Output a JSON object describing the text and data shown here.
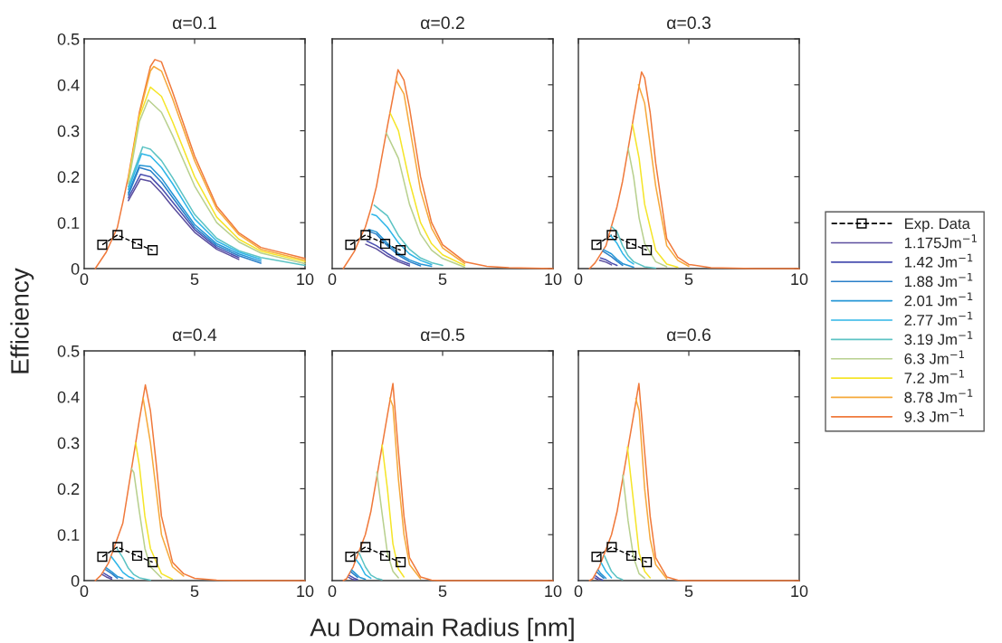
{
  "chart_data": [
    {
      "type": "line",
      "title": "α=0.1",
      "ylabel": "Efficiency",
      "xlim": [
        0,
        10
      ],
      "xticks": [
        0,
        5,
        10
      ],
      "ylim": [
        0,
        0.5
      ],
      "yticks": [
        0,
        0.1,
        0.2,
        0.3,
        0.4,
        0.5
      ],
      "grid": false,
      "legend": "right",
      "series": [
        {
          "name": "Exp. Data",
          "color": "#000000",
          "marker": "square",
          "line_style": "dashed",
          "x": [
            0.82,
            1.51,
            2.4,
            3.1
          ],
          "values": [
            0.052,
            0.073,
            0.054,
            0.04
          ]
        },
        {
          "name": "1.175Jm$^{−1}$",
          "color": "#5b4e9e",
          "x": [
            2,
            2.55,
            3,
            3.5,
            4,
            5,
            6,
            7
          ],
          "values": [
            0.148,
            0.195,
            0.19,
            0.165,
            0.135,
            0.079,
            0.042,
            0.02
          ]
        },
        {
          "name": "1.42 Jm$^{−1}$",
          "color": "#4a4fb0",
          "x": [
            2,
            2.55,
            3,
            3.5,
            4,
            5,
            6,
            7
          ],
          "values": [
            0.154,
            0.205,
            0.2,
            0.175,
            0.145,
            0.085,
            0.046,
            0.024
          ]
        },
        {
          "name": "1.88 Jm$^{−1}$",
          "color": "#2a7fc8",
          "x": [
            2,
            2.5,
            3,
            3.5,
            4,
            5,
            6,
            7,
            8
          ],
          "values": [
            0.16,
            0.22,
            0.213,
            0.188,
            0.155,
            0.09,
            0.05,
            0.028,
            0.012
          ]
        },
        {
          "name": "2.01 Jm$^{−1}$",
          "color": "#2596d6",
          "x": [
            2,
            2.5,
            3,
            3.5,
            4,
            5,
            6,
            7,
            8
          ],
          "values": [
            0.165,
            0.225,
            0.222,
            0.197,
            0.163,
            0.096,
            0.054,
            0.032,
            0.016
          ]
        },
        {
          "name": "2.77 Jm$^{−1}$",
          "color": "#2fb6e8",
          "x": [
            2,
            2.6,
            3,
            3.5,
            4,
            5,
            6,
            7,
            8
          ],
          "values": [
            0.172,
            0.25,
            0.245,
            0.22,
            0.185,
            0.108,
            0.06,
            0.036,
            0.02
          ]
        },
        {
          "name": "3.19 Jm$^{−1}$",
          "color": "#5cc3c4",
          "x": [
            2,
            2.65,
            3,
            3.5,
            4,
            5,
            6,
            7,
            8,
            10
          ],
          "values": [
            0.178,
            0.265,
            0.26,
            0.235,
            0.198,
            0.118,
            0.066,
            0.039,
            0.024,
            0.007
          ]
        },
        {
          "name": "6.3 Jm$^{−1}$",
          "color": "#b8d08e",
          "x": [
            2,
            2.5,
            2.9,
            3.5,
            4,
            5,
            6,
            7,
            8,
            10
          ],
          "values": [
            0.185,
            0.32,
            0.367,
            0.34,
            0.29,
            0.18,
            0.1,
            0.058,
            0.034,
            0.011
          ]
        },
        {
          "name": "7.2 Jm$^{−1}$",
          "color": "#f5e52a",
          "x": [
            2,
            2.5,
            3,
            3.5,
            4,
            5,
            6,
            7,
            8,
            10
          ],
          "values": [
            0.19,
            0.33,
            0.395,
            0.375,
            0.32,
            0.2,
            0.112,
            0.064,
            0.038,
            0.015
          ]
        },
        {
          "name": "8.78 Jm$^{−1}$",
          "color": "#f6a93b",
          "x": [
            2,
            2.5,
            3,
            3.15,
            3.5,
            4,
            5,
            6,
            7,
            8,
            10
          ],
          "values": [
            0.195,
            0.335,
            0.43,
            0.44,
            0.43,
            0.37,
            0.235,
            0.13,
            0.074,
            0.042,
            0.018
          ]
        },
        {
          "name": "9.3 Jm$^{−1}$",
          "color": "#f07a3c",
          "x": [
            0.5,
            1,
            1.5,
            2,
            2.5,
            3,
            3.2,
            3.5,
            4,
            5,
            6,
            7,
            8,
            10
          ],
          "values": [
            0,
            0.036,
            0.089,
            0.2,
            0.34,
            0.44,
            0.455,
            0.45,
            0.385,
            0.245,
            0.136,
            0.078,
            0.046,
            0.022
          ]
        }
      ]
    },
    {
      "type": "line",
      "title": "α=0.2",
      "xlim": [
        0,
        10
      ],
      "xticks": [
        0,
        5,
        10
      ],
      "ylim": [
        0,
        0.5
      ],
      "yticks": [
        0,
        0.1,
        0.2,
        0.3,
        0.4,
        0.5
      ],
      "grid": false,
      "tick_labels": "x",
      "series": [
        {
          "color": "#000000",
          "marker": "square",
          "line_style": "dashed",
          "x": [
            0.82,
            1.51,
            2.4,
            3.1
          ],
          "values": [
            0.052,
            0.073,
            0.054,
            0.04
          ]
        },
        {
          "color": "#5b4e9e",
          "x": [
            1.52,
            2,
            2.5,
            3,
            3.5
          ],
          "values": [
            0.053,
            0.043,
            0.027,
            0.015,
            0.006
          ]
        },
        {
          "color": "#4a4fb0",
          "x": [
            1.57,
            2,
            2.5,
            3,
            3.5
          ],
          "values": [
            0.06,
            0.05,
            0.033,
            0.019,
            0.01
          ]
        },
        {
          "color": "#2a7fc8",
          "x": [
            1.62,
            2,
            2.5,
            3,
            3.5,
            4
          ],
          "values": [
            0.082,
            0.075,
            0.05,
            0.029,
            0.015,
            0.006
          ]
        },
        {
          "color": "#2596d6",
          "x": [
            1.66,
            2,
            2.5,
            3,
            3.5,
            4,
            4.5
          ],
          "values": [
            0.085,
            0.08,
            0.055,
            0.033,
            0.019,
            0.01,
            0.005
          ]
        },
        {
          "color": "#2fb6e8",
          "x": [
            1.8,
            2,
            2.5,
            3,
            3.5,
            4,
            4.5
          ],
          "values": [
            0.118,
            0.115,
            0.09,
            0.056,
            0.032,
            0.018,
            0.009
          ]
        },
        {
          "color": "#5cc3c4",
          "x": [
            1.9,
            2.5,
            3,
            3.5,
            4,
            4.5,
            5
          ],
          "values": [
            0.138,
            0.115,
            0.072,
            0.042,
            0.023,
            0.013,
            0.007
          ]
        },
        {
          "color": "#b8d08e",
          "x": [
            2.45,
            3,
            3.5,
            4,
            4.5,
            5,
            6
          ],
          "values": [
            0.295,
            0.24,
            0.14,
            0.075,
            0.04,
            0.022,
            0.003
          ]
        },
        {
          "color": "#f5e52a",
          "x": [
            2.63,
            3,
            3.5,
            4,
            4.5,
            5,
            6
          ],
          "values": [
            0.338,
            0.3,
            0.19,
            0.1,
            0.054,
            0.03,
            0.007
          ]
        },
        {
          "color": "#f6a93b",
          "x": [
            2.88,
            3.25,
            3.5,
            4,
            4.5,
            5,
            6
          ],
          "values": [
            0.411,
            0.38,
            0.31,
            0.17,
            0.088,
            0.045,
            0.011
          ]
        },
        {
          "color": "#f07a3c",
          "x": [
            0.5,
            1,
            1.25,
            1.5,
            1.75,
            2,
            2.5,
            2.75,
            2.98,
            3.25,
            3.5,
            4,
            4.5,
            5,
            6,
            7,
            8,
            10
          ],
          "values": [
            0,
            0.037,
            0.065,
            0.09,
            0.13,
            0.178,
            0.31,
            0.373,
            0.433,
            0.41,
            0.35,
            0.2,
            0.1,
            0.052,
            0.015,
            0.005,
            0.002,
            0
          ]
        }
      ]
    },
    {
      "type": "line",
      "title": "α=0.3",
      "xlim": [
        0,
        10
      ],
      "xticks": [
        0,
        5,
        10
      ],
      "ylim": [
        0,
        0.5
      ],
      "yticks": [
        0,
        0.1,
        0.2,
        0.3,
        0.4,
        0.5
      ],
      "grid": false,
      "tick_labels": "x",
      "series": [
        {
          "color": "#000000",
          "marker": "square",
          "line_style": "dashed",
          "x": [
            0.82,
            1.51,
            2.4,
            3.1
          ],
          "values": [
            0.052,
            0.073,
            0.054,
            0.04
          ]
        },
        {
          "color": "#5b4e9e",
          "x": [
            0.96,
            1.25,
            1.5
          ],
          "values": [
            0.018,
            0.014,
            0.008
          ]
        },
        {
          "color": "#4a4fb0",
          "x": [
            1,
            1.25,
            1.5,
            1.75
          ],
          "values": [
            0.023,
            0.019,
            0.012,
            0.007
          ]
        },
        {
          "color": "#2a7fc8",
          "x": [
            1.1,
            1.5,
            1.75,
            2
          ],
          "values": [
            0.038,
            0.026,
            0.016,
            0.007
          ]
        },
        {
          "color": "#2596d6",
          "x": [
            1.14,
            1.5,
            1.75,
            2,
            2.5
          ],
          "values": [
            0.041,
            0.032,
            0.02,
            0.011,
            0.003
          ]
        },
        {
          "color": "#2fb6e8",
          "x": [
            1.46,
            1.75,
            2,
            2.25,
            2.5
          ],
          "values": [
            0.072,
            0.055,
            0.033,
            0.018,
            0.01
          ]
        },
        {
          "color": "#5cc3c4",
          "x": [
            1.51,
            1.75,
            2,
            2.25,
            2.5,
            3,
            3.5
          ],
          "values": [
            0.091,
            0.08,
            0.05,
            0.028,
            0.015,
            0.004,
            0.001
          ]
        },
        {
          "color": "#b8d08e",
          "x": [
            2.25,
            2.5,
            2.75,
            3,
            3.5,
            4
          ],
          "values": [
            0.262,
            0.2,
            0.11,
            0.055,
            0.015,
            0.004
          ]
        },
        {
          "color": "#f5e52a",
          "x": [
            2.45,
            2.75,
            3,
            3.5,
            4,
            4.5
          ],
          "values": [
            0.314,
            0.24,
            0.14,
            0.04,
            0.01,
            0.003
          ]
        },
        {
          "color": "#f6a93b",
          "x": [
            2.72,
            3,
            3.25,
            3.5,
            4,
            4.5,
            5
          ],
          "values": [
            0.4,
            0.36,
            0.27,
            0.18,
            0.05,
            0.018,
            0.005
          ]
        },
        {
          "color": "#f07a3c",
          "x": [
            0.5,
            0.75,
            1.25,
            1.75,
            2,
            2.5,
            2.86,
            3,
            3.25,
            3.5,
            4,
            4.5,
            5,
            6,
            8,
            10
          ],
          "values": [
            0,
            0.012,
            0.05,
            0.135,
            0.19,
            0.33,
            0.428,
            0.415,
            0.34,
            0.23,
            0.065,
            0.025,
            0.009,
            0.002,
            0,
            0
          ]
        }
      ]
    },
    {
      "type": "line",
      "title": "α=0.4",
      "xlim": [
        0,
        10
      ],
      "xticks": [
        0,
        5,
        10
      ],
      "ylim": [
        0,
        0.5
      ],
      "yticks": [
        0,
        0.1,
        0.2,
        0.3,
        0.4,
        0.5
      ],
      "grid": false,
      "series": [
        {
          "color": "#000000",
          "marker": "square",
          "line_style": "dashed",
          "x": [
            0.82,
            1.51,
            2.4,
            3.1
          ],
          "values": [
            0.052,
            0.073,
            0.054,
            0.04
          ]
        },
        {
          "color": "#5b4e9e",
          "x": [
            0.82,
            1,
            1.25
          ],
          "values": [
            0.013,
            0.008,
            0.003
          ]
        },
        {
          "color": "#4a4fb0",
          "x": [
            0.89,
            1.1,
            1.25
          ],
          "values": [
            0.016,
            0.01,
            0.006
          ]
        },
        {
          "color": "#2a7fc8",
          "x": [
            0.97,
            1.25,
            1.5
          ],
          "values": [
            0.024,
            0.015,
            0.005
          ]
        },
        {
          "color": "#2596d6",
          "x": [
            1,
            1.25,
            1.5,
            1.75
          ],
          "values": [
            0.028,
            0.019,
            0.009,
            0.005
          ]
        },
        {
          "color": "#2fb6e8",
          "x": [
            1.23,
            1.5,
            1.75,
            2,
            2.25
          ],
          "values": [
            0.052,
            0.035,
            0.018,
            0.009,
            0.004
          ]
        },
        {
          "color": "#5cc3c4",
          "x": [
            1.48,
            1.75,
            2,
            2.25,
            2.5,
            3
          ],
          "values": [
            0.07,
            0.05,
            0.027,
            0.013,
            0.006,
            0.001
          ]
        },
        {
          "color": "#b8d08e",
          "x": [
            2.14,
            2.25,
            2.5,
            2.75,
            3,
            3.5
          ],
          "values": [
            0.244,
            0.235,
            0.15,
            0.07,
            0.03,
            0.006
          ]
        },
        {
          "color": "#f5e52a",
          "x": [
            2.33,
            2.5,
            2.75,
            3,
            3.5,
            4
          ],
          "values": [
            0.3,
            0.25,
            0.14,
            0.07,
            0.015,
            0.003
          ]
        },
        {
          "color": "#f6a93b",
          "x": [
            2.67,
            3,
            3.25,
            3.5,
            4,
            4.5
          ],
          "values": [
            0.397,
            0.3,
            0.2,
            0.1,
            0.03,
            0.01
          ]
        },
        {
          "color": "#f07a3c",
          "x": [
            0.5,
            0.75,
            1.1,
            1.75,
            2,
            2.5,
            2.77,
            3,
            3.25,
            3.5,
            4,
            4.5,
            5,
            6,
            8,
            10
          ],
          "values": [
            0,
            0.011,
            0.038,
            0.125,
            0.2,
            0.35,
            0.426,
            0.37,
            0.26,
            0.14,
            0.04,
            0.015,
            0.005,
            0.001,
            0,
            0
          ]
        }
      ]
    },
    {
      "type": "line",
      "title": "α=0.5",
      "xlabel": "Au Domain Radius [nm]",
      "xlim": [
        0,
        10
      ],
      "xticks": [
        0,
        5,
        10
      ],
      "ylim": [
        0,
        0.5
      ],
      "yticks": [
        0,
        0.1,
        0.2,
        0.3,
        0.4,
        0.5
      ],
      "grid": false,
      "tick_labels": "x",
      "series": [
        {
          "color": "#000000",
          "marker": "square",
          "line_style": "dashed",
          "x": [
            0.82,
            1.51,
            2.4,
            3.1
          ],
          "values": [
            0.052,
            0.073,
            0.054,
            0.04
          ]
        },
        {
          "color": "#5b4e9e",
          "x": [
            0.74,
            0.9,
            1.05
          ],
          "values": [
            0.007,
            0.003,
            0.001
          ]
        },
        {
          "color": "#4a4fb0",
          "x": [
            0.78,
            1,
            1.15
          ],
          "values": [
            0.011,
            0.005,
            0.002
          ]
        },
        {
          "color": "#2a7fc8",
          "x": [
            0.85,
            1,
            1.15
          ],
          "values": [
            0.019,
            0.013,
            0.007
          ]
        },
        {
          "color": "#2596d6",
          "x": [
            0.88,
            1,
            1.25,
            1.5
          ],
          "values": [
            0.023,
            0.018,
            0.007,
            0.003
          ]
        },
        {
          "color": "#2fb6e8",
          "x": [
            1.09,
            1.25,
            1.5,
            1.75
          ],
          "values": [
            0.045,
            0.035,
            0.013,
            0.005
          ]
        },
        {
          "color": "#5cc3c4",
          "x": [
            1.21,
            1.5,
            1.75,
            2,
            2.25
          ],
          "values": [
            0.061,
            0.03,
            0.012,
            0.005,
            0.002
          ]
        },
        {
          "color": "#b8d08e",
          "x": [
            2.02,
            2.25,
            2.5,
            2.75,
            3
          ],
          "values": [
            0.236,
            0.15,
            0.06,
            0.02,
            0.006
          ]
        },
        {
          "color": "#f5e52a",
          "x": [
            2.26,
            2.5,
            2.75,
            3,
            3.25
          ],
          "values": [
            0.295,
            0.2,
            0.08,
            0.025,
            0.008
          ]
        },
        {
          "color": "#f6a93b",
          "x": [
            2.61,
            2.75,
            3,
            3.25,
            3.5,
            4
          ],
          "values": [
            0.397,
            0.38,
            0.22,
            0.1,
            0.035,
            0.004
          ]
        },
        {
          "color": "#f07a3c",
          "x": [
            0.5,
            0.65,
            0.95,
            1.5,
            1.75,
            2.5,
            2.75,
            3,
            3.25,
            3.5,
            4,
            4.5,
            5,
            6,
            8,
            10
          ],
          "values": [
            0,
            0.004,
            0.03,
            0.1,
            0.15,
            0.36,
            0.429,
            0.28,
            0.14,
            0.05,
            0.008,
            0.001,
            0,
            0,
            0,
            0
          ]
        }
      ]
    },
    {
      "type": "line",
      "title": "α=0.6",
      "xlim": [
        0,
        10
      ],
      "xticks": [
        0,
        5,
        10
      ],
      "ylim": [
        0,
        0.5
      ],
      "yticks": [
        0,
        0.1,
        0.2,
        0.3,
        0.4,
        0.5
      ],
      "grid": false,
      "tick_labels": "x",
      "series": [
        {
          "color": "#000000",
          "marker": "square",
          "line_style": "dashed",
          "x": [
            0.82,
            1.51,
            2.4,
            3.1
          ],
          "values": [
            0.052,
            0.073,
            0.054,
            0.04
          ]
        },
        {
          "color": "#5b4e9e",
          "x": [
            0.74,
            0.9
          ],
          "values": [
            0.006,
            0.002
          ]
        },
        {
          "color": "#4a4fb0",
          "x": [
            0.78,
            0.95,
            1.1
          ],
          "values": [
            0.01,
            0.004,
            0.001
          ]
        },
        {
          "color": "#2a7fc8",
          "x": [
            0.85,
            1,
            1.15
          ],
          "values": [
            0.018,
            0.011,
            0.005
          ]
        },
        {
          "color": "#2596d6",
          "x": [
            0.9,
            1,
            1.25
          ],
          "values": [
            0.023,
            0.016,
            0.005
          ]
        },
        {
          "color": "#2fb6e8",
          "x": [
            1.04,
            1.25,
            1.5
          ],
          "values": [
            0.038,
            0.02,
            0.006
          ]
        },
        {
          "color": "#5cc3c4",
          "x": [
            1.18,
            1.5,
            1.75,
            2
          ],
          "values": [
            0.054,
            0.02,
            0.007,
            0.002
          ]
        },
        {
          "color": "#b8d08e",
          "x": [
            2.01,
            2.25,
            2.5,
            2.75,
            3
          ],
          "values": [
            0.23,
            0.13,
            0.05,
            0.015,
            0.005
          ]
        },
        {
          "color": "#f5e52a",
          "x": [
            2.22,
            2.5,
            2.75,
            3,
            3.25
          ],
          "values": [
            0.291,
            0.17,
            0.06,
            0.02,
            0.006
          ]
        },
        {
          "color": "#f6a93b",
          "x": [
            2.6,
            2.75,
            3,
            3.25,
            3.5,
            4
          ],
          "values": [
            0.396,
            0.37,
            0.2,
            0.09,
            0.035,
            0.004
          ]
        },
        {
          "color": "#f07a3c",
          "x": [
            0.5,
            0.65,
            0.95,
            1.5,
            1.75,
            2.5,
            2.74,
            3,
            3.25,
            3.5,
            4,
            4.5,
            5,
            6,
            8,
            10
          ],
          "values": [
            0,
            0.004,
            0.03,
            0.1,
            0.15,
            0.36,
            0.429,
            0.28,
            0.14,
            0.05,
            0.008,
            0.001,
            0,
            0,
            0,
            0
          ]
        }
      ]
    }
  ]
}
